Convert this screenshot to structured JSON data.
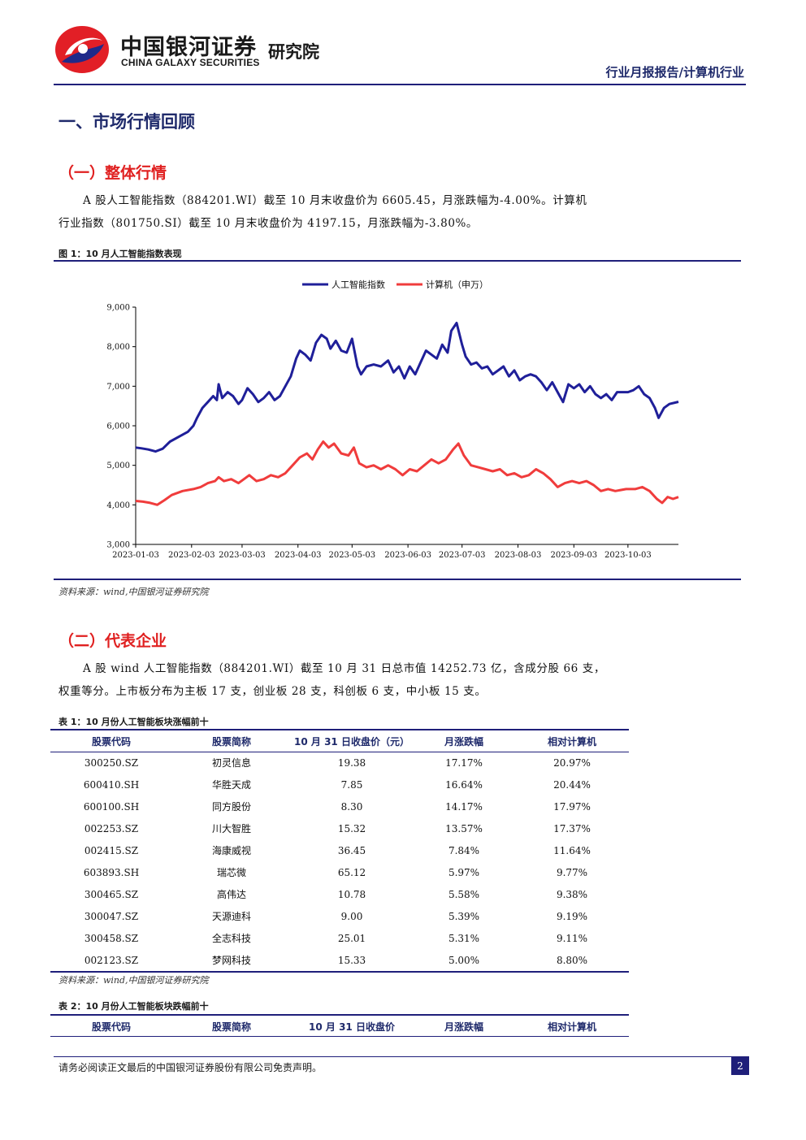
{
  "header": {
    "logo_cn": "中国银河证券",
    "logo_en": "CHINA GALAXY SECURITIES",
    "institute": "研究院",
    "report_type": "行业月报报告/计算机行业"
  },
  "section1": {
    "title": "一、市场行情回顾"
  },
  "section_overall": {
    "title": "（一）整体行情",
    "para_line1": "A 股人工智能指数（884201.WI）截至 10 月末收盘价为 6605.45，月涨跌幅为-4.00%。计算机",
    "para_line2": "行业指数（801750.SI）截至 10 月末收盘价为 4197.15，月涨跌幅为-3.80%。"
  },
  "figure1": {
    "caption": "图 1：10 月人工智能指数表现",
    "source": "资料来源：wind,中国银河证券研究院"
  },
  "chart_data": {
    "type": "line",
    "title": "",
    "xlabel": "",
    "ylabel": "",
    "ylim": [
      3000,
      9000
    ],
    "yticks": [
      3000,
      4000,
      5000,
      6000,
      7000,
      8000,
      9000
    ],
    "ytick_labels": [
      "3,000",
      "4,000",
      "5,000",
      "6,000",
      "7,000",
      "8,000",
      "9,000"
    ],
    "xlim": [
      "2023-01-03",
      "2023-10-31"
    ],
    "xticks": [
      "2023-01-03",
      "2023-02-03",
      "2023-03-03",
      "2023-04-03",
      "2023-05-03",
      "2023-06-03",
      "2023-07-03",
      "2023-08-03",
      "2023-09-03",
      "2023-10-03"
    ],
    "legend_position": "top-center",
    "grid": false,
    "series": [
      {
        "name": "人工智能指数",
        "color": "#1f1f99",
        "points": [
          [
            "2023-01-03",
            5450
          ],
          [
            "2023-01-06",
            5430
          ],
          [
            "2023-01-10",
            5400
          ],
          [
            "2023-01-14",
            5350
          ],
          [
            "2023-01-18",
            5420
          ],
          [
            "2023-01-22",
            5600
          ],
          [
            "2023-01-28",
            5750
          ],
          [
            "2023-02-01",
            5850
          ],
          [
            "2023-02-04",
            6000
          ],
          [
            "2023-02-06",
            6200
          ],
          [
            "2023-02-09",
            6450
          ],
          [
            "2023-02-12",
            6600
          ],
          [
            "2023-02-15",
            6750
          ],
          [
            "2023-02-17",
            6650
          ],
          [
            "2023-02-18",
            7050
          ],
          [
            "2023-02-20",
            6700
          ],
          [
            "2023-02-23",
            6850
          ],
          [
            "2023-02-26",
            6750
          ],
          [
            "2023-03-01",
            6550
          ],
          [
            "2023-03-03",
            6650
          ],
          [
            "2023-03-06",
            6950
          ],
          [
            "2023-03-09",
            6800
          ],
          [
            "2023-03-12",
            6600
          ],
          [
            "2023-03-15",
            6700
          ],
          [
            "2023-03-18",
            6850
          ],
          [
            "2023-03-21",
            6650
          ],
          [
            "2023-03-24",
            6750
          ],
          [
            "2023-03-27",
            7000
          ],
          [
            "2023-03-30",
            7250
          ],
          [
            "2023-04-02",
            7700
          ],
          [
            "2023-04-04",
            7900
          ],
          [
            "2023-04-07",
            7800
          ],
          [
            "2023-04-10",
            7650
          ],
          [
            "2023-04-13",
            8100
          ],
          [
            "2023-04-16",
            8300
          ],
          [
            "2023-04-19",
            8200
          ],
          [
            "2023-04-21",
            7950
          ],
          [
            "2023-04-24",
            8150
          ],
          [
            "2023-04-27",
            7900
          ],
          [
            "2023-04-30",
            7850
          ],
          [
            "2023-05-03",
            8200
          ],
          [
            "2023-05-06",
            7500
          ],
          [
            "2023-05-08",
            7300
          ],
          [
            "2023-05-11",
            7500
          ],
          [
            "2023-05-15",
            7550
          ],
          [
            "2023-05-19",
            7500
          ],
          [
            "2023-05-23",
            7650
          ],
          [
            "2023-05-26",
            7350
          ],
          [
            "2023-05-29",
            7500
          ],
          [
            "2023-06-01",
            7200
          ],
          [
            "2023-06-04",
            7500
          ],
          [
            "2023-06-07",
            7300
          ],
          [
            "2023-06-10",
            7600
          ],
          [
            "2023-06-13",
            7900
          ],
          [
            "2023-06-16",
            7800
          ],
          [
            "2023-06-19",
            7700
          ],
          [
            "2023-06-22",
            8050
          ],
          [
            "2023-06-25",
            7850
          ],
          [
            "2023-06-27",
            8400
          ],
          [
            "2023-06-30",
            8600
          ],
          [
            "2023-07-03",
            8050
          ],
          [
            "2023-07-05",
            7750
          ],
          [
            "2023-07-08",
            7550
          ],
          [
            "2023-07-11",
            7600
          ],
          [
            "2023-07-14",
            7450
          ],
          [
            "2023-07-17",
            7500
          ],
          [
            "2023-07-20",
            7300
          ],
          [
            "2023-07-23",
            7400
          ],
          [
            "2023-07-26",
            7500
          ],
          [
            "2023-07-29",
            7250
          ],
          [
            "2023-08-01",
            7400
          ],
          [
            "2023-08-04",
            7150
          ],
          [
            "2023-08-07",
            7250
          ],
          [
            "2023-08-10",
            7300
          ],
          [
            "2023-08-13",
            7250
          ],
          [
            "2023-08-16",
            7100
          ],
          [
            "2023-08-19",
            6900
          ],
          [
            "2023-08-22",
            7100
          ],
          [
            "2023-08-25",
            6850
          ],
          [
            "2023-08-28",
            6600
          ],
          [
            "2023-08-31",
            7050
          ],
          [
            "2023-09-03",
            6950
          ],
          [
            "2023-09-06",
            7050
          ],
          [
            "2023-09-09",
            6850
          ],
          [
            "2023-09-12",
            7000
          ],
          [
            "2023-09-15",
            6800
          ],
          [
            "2023-09-18",
            6700
          ],
          [
            "2023-09-21",
            6800
          ],
          [
            "2023-09-24",
            6650
          ],
          [
            "2023-09-27",
            6850
          ],
          [
            "2023-10-03",
            6850
          ],
          [
            "2023-10-06",
            6900
          ],
          [
            "2023-10-09",
            7000
          ],
          [
            "2023-10-12",
            6800
          ],
          [
            "2023-10-15",
            6700
          ],
          [
            "2023-10-18",
            6450
          ],
          [
            "2023-10-20",
            6200
          ],
          [
            "2023-10-23",
            6450
          ],
          [
            "2023-10-26",
            6550
          ],
          [
            "2023-10-31",
            6605.45
          ]
        ]
      },
      {
        "name": "计算机（申万）",
        "color": "#f03c3c",
        "points": [
          [
            "2023-01-03",
            4100
          ],
          [
            "2023-01-07",
            4080
          ],
          [
            "2023-01-11",
            4050
          ],
          [
            "2023-01-15",
            4000
          ],
          [
            "2023-01-19",
            4120
          ],
          [
            "2023-01-23",
            4250
          ],
          [
            "2023-01-29",
            4350
          ],
          [
            "2023-02-04",
            4400
          ],
          [
            "2023-02-08",
            4450
          ],
          [
            "2023-02-12",
            4550
          ],
          [
            "2023-02-16",
            4600
          ],
          [
            "2023-02-18",
            4700
          ],
          [
            "2023-02-21",
            4600
          ],
          [
            "2023-02-25",
            4650
          ],
          [
            "2023-03-01",
            4550
          ],
          [
            "2023-03-04",
            4650
          ],
          [
            "2023-03-07",
            4750
          ],
          [
            "2023-03-11",
            4600
          ],
          [
            "2023-03-15",
            4650
          ],
          [
            "2023-03-19",
            4750
          ],
          [
            "2023-03-23",
            4700
          ],
          [
            "2023-03-27",
            4800
          ],
          [
            "2023-03-31",
            5000
          ],
          [
            "2023-04-04",
            5200
          ],
          [
            "2023-04-08",
            5300
          ],
          [
            "2023-04-11",
            5150
          ],
          [
            "2023-04-14",
            5400
          ],
          [
            "2023-04-17",
            5600
          ],
          [
            "2023-04-20",
            5450
          ],
          [
            "2023-04-23",
            5550
          ],
          [
            "2023-04-27",
            5300
          ],
          [
            "2023-05-01",
            5250
          ],
          [
            "2023-05-04",
            5450
          ],
          [
            "2023-05-07",
            5050
          ],
          [
            "2023-05-11",
            4950
          ],
          [
            "2023-05-15",
            5000
          ],
          [
            "2023-05-19",
            4900
          ],
          [
            "2023-05-23",
            5000
          ],
          [
            "2023-05-27",
            4900
          ],
          [
            "2023-05-31",
            4750
          ],
          [
            "2023-06-04",
            4900
          ],
          [
            "2023-06-08",
            4850
          ],
          [
            "2023-06-12",
            5000
          ],
          [
            "2023-06-16",
            5150
          ],
          [
            "2023-06-20",
            5050
          ],
          [
            "2023-06-24",
            5150
          ],
          [
            "2023-06-28",
            5400
          ],
          [
            "2023-07-01",
            5550
          ],
          [
            "2023-07-04",
            5250
          ],
          [
            "2023-07-08",
            5000
          ],
          [
            "2023-07-12",
            4950
          ],
          [
            "2023-07-16",
            4900
          ],
          [
            "2023-07-20",
            4850
          ],
          [
            "2023-07-24",
            4900
          ],
          [
            "2023-07-28",
            4750
          ],
          [
            "2023-08-01",
            4800
          ],
          [
            "2023-08-05",
            4700
          ],
          [
            "2023-08-09",
            4750
          ],
          [
            "2023-08-13",
            4900
          ],
          [
            "2023-08-17",
            4800
          ],
          [
            "2023-08-21",
            4650
          ],
          [
            "2023-08-25",
            4450
          ],
          [
            "2023-08-29",
            4550
          ],
          [
            "2023-09-02",
            4600
          ],
          [
            "2023-09-06",
            4550
          ],
          [
            "2023-09-10",
            4600
          ],
          [
            "2023-09-14",
            4500
          ],
          [
            "2023-09-18",
            4350
          ],
          [
            "2023-09-22",
            4400
          ],
          [
            "2023-09-26",
            4350
          ],
          [
            "2023-10-02",
            4400
          ],
          [
            "2023-10-07",
            4400
          ],
          [
            "2023-10-11",
            4450
          ],
          [
            "2023-10-15",
            4350
          ],
          [
            "2023-10-19",
            4150
          ],
          [
            "2023-10-22",
            4050
          ],
          [
            "2023-10-25",
            4200
          ],
          [
            "2023-10-28",
            4150
          ],
          [
            "2023-10-31",
            4197.15
          ]
        ]
      }
    ]
  },
  "section_companies": {
    "title": "（二）代表企业",
    "para_line1": "A 股 wind 人工智能指数（884201.WI）截至 10 月 31 日总市值 14252.73 亿，含成分股 66 支，",
    "para_line2": "权重等分。上市板分布为主板 17 支，创业板 28 支，科创板 6 支，中小板 15 支。"
  },
  "table1": {
    "caption": "表 1：10 月份人工智能板块涨幅前十",
    "columns": [
      "股票代码",
      "股票简称",
      "10 月 31 日收盘价（元）",
      "月涨跌幅",
      "相对计算机"
    ],
    "rows": [
      [
        "300250.SZ",
        "初灵信息",
        "19.38",
        "17.17%",
        "20.97%"
      ],
      [
        "600410.SH",
        "华胜天成",
        "7.85",
        "16.64%",
        "20.44%"
      ],
      [
        "600100.SH",
        "同方股份",
        "8.30",
        "14.17%",
        "17.97%"
      ],
      [
        "002253.SZ",
        "川大智胜",
        "15.32",
        "13.57%",
        "17.37%"
      ],
      [
        "002415.SZ",
        "海康威视",
        "36.45",
        "7.84%",
        "11.64%"
      ],
      [
        "603893.SH",
        "瑞芯微",
        "65.12",
        "5.97%",
        "9.77%"
      ],
      [
        "300465.SZ",
        "高伟达",
        "10.78",
        "5.58%",
        "9.38%"
      ],
      [
        "300047.SZ",
        "天源迪科",
        "9.00",
        "5.39%",
        "9.19%"
      ],
      [
        "300458.SZ",
        "全志科技",
        "25.01",
        "5.31%",
        "9.11%"
      ],
      [
        "002123.SZ",
        "梦网科技",
        "15.33",
        "5.00%",
        "8.80%"
      ]
    ],
    "source": "资料来源：wind,中国银河证券研究院"
  },
  "table2": {
    "caption": "表 2：10 月份人工智能板块跌幅前十",
    "columns": [
      "股票代码",
      "股票简称",
      "10 月 31 日收盘价",
      "月涨跌幅",
      "相对计算机"
    ]
  },
  "footer": {
    "disclaimer": "请务必阅读正文最后的中国银河证券股份有限公司免责声明。",
    "page_number": "2"
  },
  "colors": {
    "brand_red": "#e02020",
    "brand_navy": "#1f1f7a"
  }
}
